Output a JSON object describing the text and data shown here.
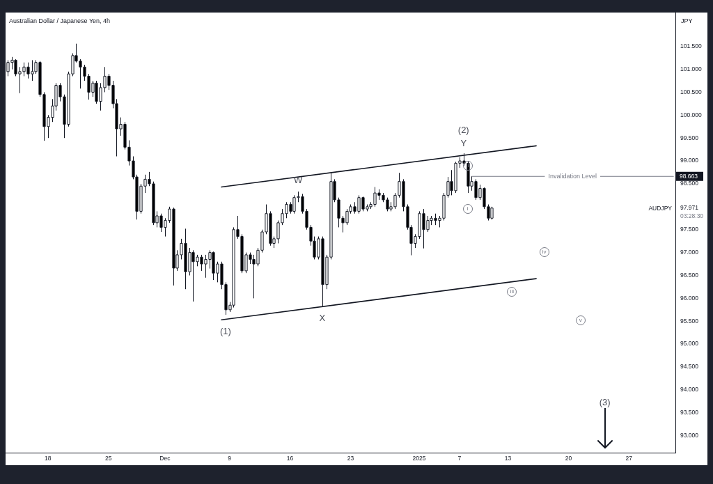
{
  "chart_data": {
    "type": "candlestick",
    "title": "Australian Dollar / Japanese Yen, 4h",
    "ylabel": "JPY",
    "categories": [
      null,
      null,
      null,
      null,
      null,
      null,
      null,
      null,
      null,
      null,
      "18",
      null,
      null,
      null,
      null,
      null,
      null,
      null,
      null,
      null,
      null,
      null,
      null,
      null,
      null,
      "25",
      null,
      null,
      null,
      null,
      null,
      null,
      null,
      null,
      null,
      null,
      null,
      null,
      null,
      "Dec",
      null,
      null,
      null,
      null,
      null,
      null,
      null,
      null,
      null,
      null,
      null,
      null,
      null,
      null,
      null,
      "9",
      null,
      null,
      null,
      null,
      null,
      null,
      null,
      null,
      null,
      null,
      null,
      null,
      null,
      null,
      "16",
      null,
      null,
      null,
      null,
      null,
      null,
      null,
      null,
      null,
      null,
      null,
      null,
      null,
      null,
      "23",
      null,
      null,
      null,
      null,
      null,
      null,
      null,
      null,
      null,
      null,
      null,
      null,
      null,
      null,
      null,
      null,
      "2025",
      null,
      null,
      null,
      null,
      null,
      null,
      null,
      null,
      null,
      "7",
      null,
      null,
      null,
      null,
      null,
      null,
      null,
      null,
      null,
      null,
      null,
      "13",
      null,
      null,
      null,
      null,
      null,
      null,
      null,
      null,
      null,
      null,
      null,
      null,
      null,
      null,
      "20",
      null,
      null,
      null,
      null,
      null,
      null,
      null,
      null,
      null,
      null,
      null,
      null,
      null,
      null,
      "27",
      null,
      null,
      null,
      null,
      null,
      null,
      null,
      null,
      null,
      null,
      null
    ],
    "ohlc": [
      [
        100.95,
        101.2,
        100.85,
        101.15
      ],
      [
        101.15,
        101.27,
        101.0,
        101.2
      ],
      [
        101.2,
        101.22,
        100.85,
        100.9
      ],
      [
        100.9,
        101.05,
        100.48,
        100.95
      ],
      [
        100.95,
        101.15,
        100.85,
        101.05
      ],
      [
        101.05,
        101.15,
        100.8,
        100.9
      ],
      [
        100.9,
        101.2,
        100.75,
        100.95
      ],
      [
        100.95,
        101.2,
        100.9,
        101.15
      ],
      [
        101.15,
        101.18,
        100.4,
        100.45
      ],
      [
        100.45,
        100.5,
        99.44,
        99.75
      ],
      [
        99.75,
        100.0,
        99.5,
        99.95
      ],
      [
        99.95,
        100.35,
        99.85,
        100.2
      ],
      [
        100.2,
        100.7,
        100.1,
        100.65
      ],
      [
        100.65,
        100.7,
        100.3,
        100.4
      ],
      [
        100.4,
        100.45,
        99.5,
        99.8
      ],
      [
        99.8,
        100.95,
        99.75,
        100.9
      ],
      [
        100.9,
        101.35,
        100.85,
        101.3
      ],
      [
        101.3,
        101.56,
        101.15,
        101.18
      ],
      [
        101.18,
        101.22,
        100.58,
        101.05
      ],
      [
        101.05,
        101.1,
        100.75,
        100.85
      ],
      [
        100.85,
        100.9,
        100.34,
        100.5
      ],
      [
        100.5,
        100.75,
        100.4,
        100.7
      ],
      [
        100.7,
        100.75,
        100.25,
        100.3
      ],
      [
        100.3,
        100.7,
        100.1,
        100.6
      ],
      [
        100.6,
        101.05,
        100.5,
        100.85
      ],
      [
        100.85,
        100.9,
        100.55,
        100.65
      ],
      [
        100.65,
        100.75,
        100.15,
        100.25
      ],
      [
        100.25,
        100.35,
        99.1,
        99.7
      ],
      [
        99.7,
        99.95,
        99.55,
        99.8
      ],
      [
        99.8,
        99.85,
        99.25,
        99.3
      ],
      [
        99.3,
        99.45,
        98.9,
        99.0
      ],
      [
        99.0,
        99.1,
        98.6,
        98.65
      ],
      [
        98.65,
        98.7,
        97.72,
        97.9
      ],
      [
        97.9,
        98.5,
        97.85,
        98.45
      ],
      [
        98.45,
        98.7,
        98.3,
        98.6
      ],
      [
        98.6,
        98.76,
        98.45,
        98.5
      ],
      [
        98.5,
        98.55,
        97.6,
        97.65
      ],
      [
        97.65,
        97.9,
        97.55,
        97.8
      ],
      [
        97.8,
        97.85,
        97.45,
        97.55
      ],
      [
        97.55,
        97.75,
        97.35,
        97.7
      ],
      [
        97.7,
        98.0,
        97.65,
        97.95
      ],
      [
        97.95,
        97.98,
        96.28,
        96.66
      ],
      [
        96.66,
        97.05,
        96.6,
        96.95
      ],
      [
        96.95,
        97.3,
        96.85,
        97.2
      ],
      [
        97.2,
        97.52,
        96.2,
        96.58
      ],
      [
        96.58,
        97.1,
        96.5,
        97.0
      ],
      [
        97.0,
        97.05,
        95.93,
        96.8
      ],
      [
        96.8,
        96.95,
        96.7,
        96.9
      ],
      [
        96.9,
        96.95,
        96.6,
        96.75
      ],
      [
        96.75,
        96.95,
        96.45,
        96.85
      ],
      [
        96.85,
        97.05,
        96.65,
        97.0
      ],
      [
        97.0,
        97.02,
        96.4,
        96.55
      ],
      [
        96.55,
        96.8,
        96.35,
        96.75
      ],
      [
        96.75,
        96.8,
        96.2,
        96.3
      ],
      [
        96.3,
        96.35,
        95.64,
        95.75
      ],
      [
        95.75,
        95.92,
        95.7,
        95.85
      ],
      [
        95.85,
        97.55,
        95.8,
        97.5
      ],
      [
        97.5,
        97.8,
        97.3,
        97.35
      ],
      [
        97.35,
        97.4,
        96.55,
        96.6
      ],
      [
        96.6,
        97.0,
        96.55,
        96.95
      ],
      [
        96.95,
        97.0,
        96.75,
        96.85
      ],
      [
        96.85,
        96.95,
        96.0,
        96.75
      ],
      [
        96.75,
        97.1,
        96.7,
        97.05
      ],
      [
        97.05,
        97.5,
        97.0,
        97.45
      ],
      [
        97.45,
        98.05,
        97.4,
        97.85
      ],
      [
        97.85,
        97.9,
        97.15,
        97.2
      ],
      [
        97.2,
        97.35,
        97.1,
        97.3
      ],
      [
        97.3,
        97.7,
        97.2,
        97.65
      ],
      [
        97.65,
        97.95,
        97.6,
        97.85
      ],
      [
        97.85,
        98.1,
        97.75,
        98.05
      ],
      [
        98.05,
        98.1,
        97.85,
        97.9
      ],
      [
        97.9,
        98.25,
        97.85,
        98.2
      ],
      [
        98.2,
        98.33,
        98.1,
        98.22
      ],
      [
        98.22,
        98.28,
        97.85,
        97.9
      ],
      [
        97.9,
        97.95,
        97.5,
        97.55
      ],
      [
        97.55,
        97.6,
        97.15,
        97.25
      ],
      [
        97.25,
        97.35,
        96.85,
        96.9
      ],
      [
        96.9,
        97.35,
        96.85,
        97.3
      ],
      [
        97.3,
        97.35,
        95.82,
        96.3
      ],
      [
        96.3,
        96.95,
        96.2,
        96.9
      ],
      [
        96.9,
        98.74,
        96.85,
        98.55
      ],
      [
        98.55,
        98.6,
        98.1,
        98.15
      ],
      [
        98.15,
        98.2,
        97.55,
        97.75
      ],
      [
        97.75,
        97.8,
        97.44,
        97.65
      ],
      [
        97.65,
        97.95,
        97.6,
        97.9
      ],
      [
        97.9,
        98.05,
        97.85,
        98.0
      ],
      [
        98.0,
        98.1,
        97.85,
        97.9
      ],
      [
        97.9,
        98.25,
        97.85,
        98.2
      ],
      [
        98.2,
        98.22,
        97.9,
        97.95
      ],
      [
        97.95,
        98.05,
        97.9,
        98.0
      ],
      [
        98.0,
        98.1,
        97.95,
        98.05
      ],
      [
        98.05,
        98.43,
        98.0,
        98.3
      ],
      [
        98.3,
        98.38,
        98.15,
        98.25
      ],
      [
        98.25,
        98.3,
        98.1,
        98.15
      ],
      [
        98.15,
        98.2,
        97.9,
        97.95
      ],
      [
        97.95,
        98.1,
        97.9,
        98.0
      ],
      [
        98.0,
        98.3,
        97.95,
        98.25
      ],
      [
        98.25,
        98.74,
        98.2,
        98.55
      ],
      [
        98.55,
        98.6,
        97.9,
        98.0
      ],
      [
        98.0,
        98.05,
        97.5,
        97.55
      ],
      [
        97.55,
        97.6,
        96.94,
        97.2
      ],
      [
        97.2,
        97.4,
        97.1,
        97.35
      ],
      [
        97.35,
        97.9,
        97.3,
        97.85
      ],
      [
        97.85,
        97.95,
        97.09,
        97.5
      ],
      [
        97.5,
        97.8,
        97.45,
        97.7
      ],
      [
        97.7,
        97.8,
        97.6,
        97.75
      ],
      [
        97.75,
        97.85,
        97.6,
        97.7
      ],
      [
        97.7,
        97.8,
        97.55,
        97.75
      ],
      [
        97.75,
        98.3,
        97.7,
        98.25
      ],
      [
        98.25,
        98.65,
        98.2,
        98.55
      ],
      [
        98.55,
        98.8,
        98.25,
        98.35
      ],
      [
        98.35,
        98.98,
        98.3,
        98.95
      ],
      [
        98.95,
        99.08,
        98.85,
        99.0
      ],
      [
        99.0,
        99.17,
        98.9,
        98.95
      ],
      [
        98.95,
        99.0,
        98.3,
        98.45
      ],
      [
        98.45,
        98.66,
        98.35,
        98.55
      ],
      [
        98.55,
        98.6,
        98.15,
        98.2
      ],
      [
        98.2,
        98.48,
        98.15,
        98.4
      ],
      [
        98.4,
        98.42,
        97.95,
        98.0
      ],
      [
        98.0,
        98.05,
        97.7,
        97.75
      ],
      [
        97.75,
        98.0,
        97.72,
        97.971
      ],
      null,
      null,
      null,
      null,
      null,
      null,
      null,
      null,
      null,
      null,
      null,
      null,
      null,
      null,
      null,
      null,
      null,
      null,
      null,
      null,
      null,
      null,
      null,
      null,
      null,
      null,
      null,
      null,
      null,
      null,
      null,
      null,
      null,
      null,
      null,
      null,
      null,
      null,
      null,
      null,
      null,
      null,
      null,
      null,
      null
    ],
    "color": "#131722",
    "colors": [
      "#ffffff",
      "#ffffff",
      "#000000",
      "#ffffff",
      "#ffffff",
      "#000000",
      "#ffffff",
      "#ffffff",
      "#000000",
      "#000000",
      "#ffffff",
      "#ffffff",
      "#ffffff",
      "#000000",
      "#000000",
      "#ffffff",
      "#ffffff",
      "#000000",
      "#000000",
      "#000000",
      "#000000",
      "#ffffff",
      "#000000",
      "#ffffff",
      "#ffffff",
      "#000000",
      "#000000",
      "#000000",
      "#ffffff",
      "#000000",
      "#000000",
      "#000000",
      "#000000",
      "#ffffff",
      "#ffffff",
      "#000000",
      "#000000",
      "#ffffff",
      "#000000",
      "#ffffff",
      "#ffffff",
      "#000000",
      "#ffffff",
      "#ffffff",
      "#000000",
      "#ffffff",
      "#000000",
      "#ffffff",
      "#000000",
      "#ffffff",
      "#ffffff",
      "#000000",
      "#ffffff",
      "#000000",
      "#000000",
      "#ffffff",
      "#ffffff",
      "#000000",
      "#000000",
      "#ffffff",
      "#000000",
      "#000000",
      "#ffffff",
      "#ffffff",
      "#ffffff",
      "#000000",
      "#ffffff",
      "#ffffff",
      "#ffffff",
      "#ffffff",
      "#000000",
      "#ffffff",
      "#ffffff",
      "#000000",
      "#000000",
      "#000000",
      "#000000",
      "#ffffff",
      "#000000",
      "#ffffff",
      "#ffffff",
      "#000000",
      "#000000",
      "#000000",
      "#ffffff",
      "#ffffff",
      "#000000",
      "#ffffff",
      "#000000",
      "#ffffff",
      "#ffffff",
      "#ffffff",
      "#000000",
      "#000000",
      "#000000",
      "#ffffff",
      "#ffffff",
      "#ffffff",
      "#000000",
      "#000000",
      "#000000",
      "#ffffff",
      "#ffffff",
      "#000000",
      "#ffffff",
      "#ffffff",
      "#000000",
      "#ffffff",
      "#ffffff",
      "#ffffff",
      "#000000",
      "#ffffff",
      "#ffffff",
      "#000000",
      "#000000",
      "#ffffff",
      "#000000",
      "#ffffff",
      "#000000",
      "#000000",
      "#ffffff",
      null,
      null,
      null,
      null,
      null,
      null,
      null,
      null,
      null,
      null,
      null,
      null,
      null,
      null,
      null,
      null,
      null,
      null,
      null,
      null,
      null,
      null,
      null,
      null,
      null,
      null,
      null,
      null,
      null,
      null,
      null,
      null,
      null,
      null,
      null,
      null,
      null,
      null,
      null,
      null,
      null,
      null,
      null,
      null,
      null
    ],
    "series": [
      {
        "type": "line",
        "color": "#131722",
        "values": [
          null,
          null,
          null,
          null,
          null,
          null,
          null,
          null,
          null,
          null,
          null,
          null,
          null,
          null,
          null,
          null,
          null,
          null,
          null,
          null,
          null,
          null,
          null,
          null,
          null,
          null,
          null,
          null,
          null,
          null,
          null,
          null,
          null,
          null,
          null,
          null,
          null,
          null,
          null,
          null,
          null,
          null,
          null,
          null,
          null,
          null,
          null,
          null,
          null,
          null,
          null,
          null,
          null,
          98.43,
          null,
          null,
          null,
          null,
          null,
          null,
          null,
          null,
          null,
          null,
          null,
          null,
          null,
          null,
          null,
          null,
          null,
          null,
          null,
          null,
          null,
          null,
          null,
          null,
          null,
          null,
          null,
          null,
          null,
          null,
          null,
          null,
          null,
          null,
          null,
          null,
          null,
          null,
          null,
          null,
          null,
          null,
          null,
          null,
          null,
          null,
          null,
          null,
          null,
          null,
          null,
          null,
          null,
          null,
          null,
          null,
          null,
          null,
          null,
          null,
          null,
          null,
          null,
          null,
          null,
          null,
          null,
          null,
          null,
          null,
          null,
          null,
          null,
          null,
          null,
          null,
          null,
          99.33,
          null,
          null,
          null,
          null,
          null,
          null,
          null,
          null,
          null,
          null,
          null,
          null,
          null,
          null,
          null,
          null,
          null,
          null,
          null,
          null,
          null,
          null,
          null,
          null,
          null,
          null,
          null,
          null,
          null,
          null,
          null,
          null,
          null,
          null
        ]
      },
      {
        "type": "line",
        "color": "#131722",
        "values": [
          null,
          null,
          null,
          null,
          null,
          null,
          null,
          null,
          null,
          null,
          null,
          null,
          null,
          null,
          null,
          null,
          null,
          null,
          null,
          null,
          null,
          null,
          null,
          null,
          null,
          null,
          null,
          null,
          null,
          null,
          null,
          null,
          null,
          null,
          null,
          null,
          null,
          null,
          null,
          null,
          null,
          null,
          null,
          null,
          null,
          null,
          null,
          null,
          null,
          null,
          null,
          null,
          null,
          95.53,
          null,
          null,
          null,
          null,
          null,
          null,
          null,
          null,
          null,
          null,
          null,
          null,
          null,
          null,
          null,
          null,
          null,
          null,
          null,
          null,
          null,
          null,
          null,
          null,
          null,
          null,
          null,
          null,
          null,
          null,
          null,
          null,
          null,
          null,
          null,
          null,
          null,
          null,
          null,
          null,
          null,
          null,
          null,
          null,
          null,
          null,
          null,
          null,
          null,
          null,
          null,
          null,
          null,
          null,
          null,
          null,
          null,
          null,
          null,
          null,
          null,
          null,
          null,
          null,
          null,
          null,
          null,
          null,
          null,
          null,
          null,
          null,
          null,
          null,
          null,
          null,
          null,
          96.43,
          null,
          null,
          null,
          null,
          null,
          null,
          null,
          null,
          null,
          null,
          null,
          null,
          null,
          null,
          null,
          null,
          null,
          null,
          null,
          null,
          null,
          null,
          null,
          null,
          null,
          null,
          null,
          null,
          null,
          null,
          null,
          null,
          null,
          null
        ]
      },
      {
        "type": "line",
        "name": "Invalidation Level",
        "color": "#787b86",
        "values": [
          null,
          null,
          null,
          null,
          null,
          null,
          null,
          null,
          null,
          null,
          null,
          null,
          null,
          null,
          null,
          null,
          null,
          null,
          null,
          null,
          null,
          null,
          null,
          null,
          null,
          null,
          null,
          null,
          null,
          null,
          null,
          null,
          null,
          null,
          null,
          null,
          null,
          null,
          null,
          null,
          null,
          null,
          null,
          null,
          null,
          null,
          null,
          null,
          null,
          null,
          null,
          null,
          null,
          null,
          null,
          null,
          null,
          null,
          null,
          null,
          null,
          null,
          null,
          null,
          null,
          null,
          null,
          null,
          null,
          null,
          null,
          null,
          null,
          null,
          null,
          null,
          null,
          null,
          null,
          null,
          null,
          null,
          null,
          null,
          null,
          null,
          null,
          null,
          null,
          null,
          null,
          null,
          null,
          null,
          null,
          null,
          null,
          null,
          null,
          null,
          null,
          null,
          null,
          null,
          null,
          null,
          null,
          null,
          null,
          null,
          null,
          null,
          null,
          null,
          null,
          98.663,
          null,
          null,
          null,
          null,
          null,
          null,
          null,
          null,
          null,
          null,
          null,
          null,
          null,
          null,
          null,
          null,
          null,
          null,
          null,
          null,
          null,
          null,
          null,
          null,
          null,
          null,
          null,
          null,
          null,
          null,
          null,
          null,
          null,
          null,
          null,
          null,
          null,
          null,
          null,
          null,
          null,
          null,
          null,
          null,
          null,
          null,
          null,
          null,
          null,
          98.663
        ],
        "value_labels": [
          null,
          null,
          null,
          null,
          null,
          null,
          null,
          null,
          null,
          null,
          null,
          null,
          null,
          null,
          null,
          null,
          null,
          null,
          null,
          null,
          null,
          null,
          null,
          null,
          null,
          null,
          null,
          null,
          null,
          null,
          null,
          null,
          null,
          null,
          null,
          null,
          null,
          null,
          null,
          null,
          null,
          null,
          null,
          null,
          null,
          null,
          null,
          null,
          null,
          null,
          null,
          null,
          null,
          null,
          null,
          null,
          null,
          null,
          null,
          null,
          null,
          null,
          null,
          null,
          null,
          null,
          null,
          null,
          null,
          null,
          null,
          null,
          null,
          null,
          null,
          null,
          null,
          null,
          null,
          null,
          null,
          null,
          null,
          null,
          null,
          null,
          null,
          null,
          null,
          null,
          null,
          null,
          null,
          null,
          null,
          null,
          null,
          null,
          null,
          null,
          null,
          null,
          null,
          null,
          null,
          null,
          null,
          null,
          null,
          null,
          null,
          null,
          null,
          null,
          null,
          null,
          null,
          null,
          null,
          null,
          null,
          null,
          null,
          null,
          null,
          null,
          null,
          null,
          null,
          null,
          null,
          null,
          null,
          null,
          null,
          null,
          null,
          null,
          null,
          null,
          null,
          null,
          null,
          null,
          null,
          null,
          null,
          null,
          null,
          null,
          null,
          null,
          null,
          null,
          null,
          null,
          null,
          null,
          null,
          null,
          null,
          null,
          null,
          null,
          null,
          "98.663"
        ]
      }
    ],
    "ylim": [
      92.63,
      102.24
    ],
    "yticks": [
      {
        "value": 93,
        "label": "93.000"
      },
      {
        "value": 93.5,
        "label": "93.500"
      },
      {
        "value": 94,
        "label": "94.000"
      },
      {
        "value": 94.5,
        "label": "94.500"
      },
      {
        "value": 95,
        "label": "95.000"
      },
      {
        "value": 95.5,
        "label": "95.500"
      },
      {
        "value": 96,
        "label": "96.000"
      },
      {
        "value": 96.5,
        "label": "96.500"
      },
      {
        "value": 97,
        "label": "97.000"
      },
      {
        "value": 97.5,
        "label": "97.500"
      },
      97.971,
      {
        "value": 98.5,
        "label": "98.500"
      },
      {
        "value": 99,
        "label": "99.000"
      },
      {
        "value": 99.5,
        "label": "99.500"
      },
      {
        "value": 100,
        "label": "100.000"
      },
      {
        "value": 100.5,
        "label": "100.500"
      },
      {
        "value": 101,
        "label": "101.000"
      },
      {
        "value": 101.5,
        "label": "101.500"
      }
    ],
    "annotations": [
      "W",
      "X",
      "Y",
      "(2)",
      "(1)",
      "(3)",
      "ii",
      "i",
      "iii",
      "iv",
      "v",
      "AUDJPY",
      "03:28:30"
    ]
  }
}
